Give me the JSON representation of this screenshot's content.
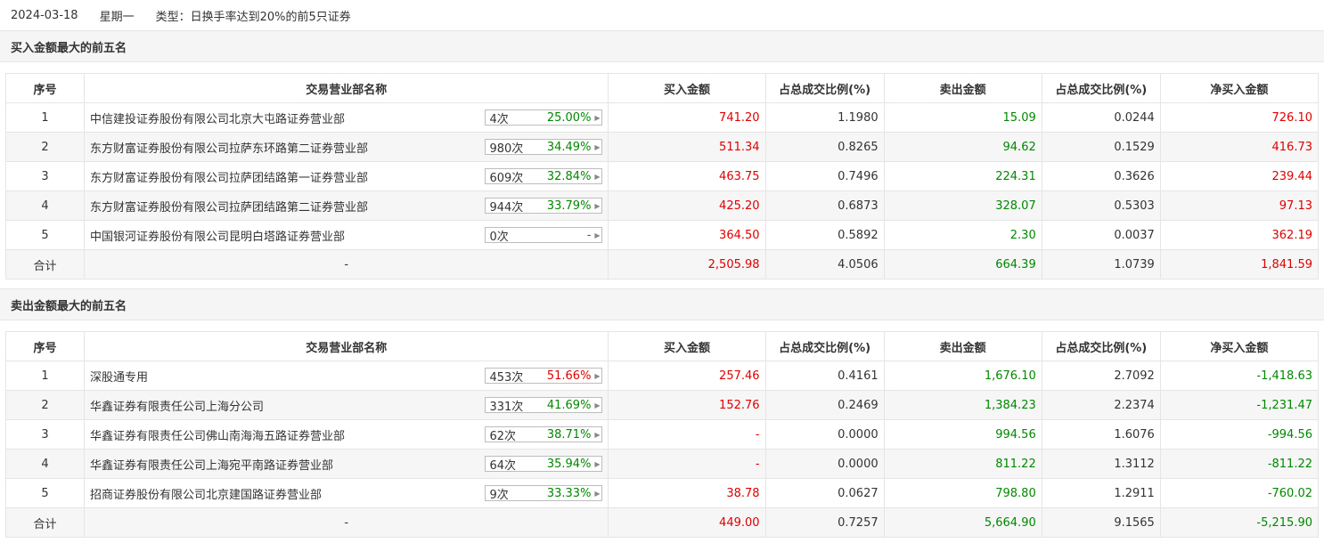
{
  "topbar": {
    "date": "2024-03-18",
    "weekday": "星期一",
    "type": "类型：日换手率达到20%的前5只证券"
  },
  "headers": [
    "序号",
    "交易营业部名称",
    "买入金额",
    "占总成交比例(%)",
    "卖出金额",
    "占总成交比例(%)",
    "净买入金额"
  ],
  "sections": [
    {
      "title": "买入金额最大的前五名",
      "rows": [
        {
          "idx": "1",
          "dept": "中信建投证券股份有限公司北京大屯路证券营业部",
          "count": "4次",
          "pct": "25.00%",
          "pct_color": "green",
          "buy": "741.20",
          "buy_color": "red",
          "buy_ratio": "1.1980",
          "sell": "15.09",
          "sell_ratio": "0.0244",
          "net": "726.10",
          "net_color": "red"
        },
        {
          "idx": "2",
          "dept": "东方财富证券股份有限公司拉萨东环路第二证券营业部",
          "count": "980次",
          "pct": "34.49%",
          "pct_color": "green",
          "buy": "511.34",
          "buy_color": "red",
          "buy_ratio": "0.8265",
          "sell": "94.62",
          "sell_ratio": "0.1529",
          "net": "416.73",
          "net_color": "red"
        },
        {
          "idx": "3",
          "dept": "东方财富证券股份有限公司拉萨团结路第一证券营业部",
          "count": "609次",
          "pct": "32.84%",
          "pct_color": "green",
          "buy": "463.75",
          "buy_color": "red",
          "buy_ratio": "0.7496",
          "sell": "224.31",
          "sell_ratio": "0.3626",
          "net": "239.44",
          "net_color": "red"
        },
        {
          "idx": "4",
          "dept": "东方财富证券股份有限公司拉萨团结路第二证券营业部",
          "count": "944次",
          "pct": "33.79%",
          "pct_color": "green",
          "buy": "425.20",
          "buy_color": "red",
          "buy_ratio": "0.6873",
          "sell": "328.07",
          "sell_ratio": "0.5303",
          "net": "97.13",
          "net_color": "red"
        },
        {
          "idx": "5",
          "dept": "中国银河证券股份有限公司昆明白塔路证券营业部",
          "count": "0次",
          "pct": "-",
          "pct_color": "gray",
          "buy": "364.50",
          "buy_color": "red",
          "buy_ratio": "0.5892",
          "sell": "2.30",
          "sell_ratio": "0.0037",
          "net": "362.19",
          "net_color": "red"
        }
      ],
      "total": {
        "label": "合计",
        "dept": "-",
        "buy": "2,505.98",
        "buy_ratio": "4.0506",
        "sell": "664.39",
        "sell_ratio": "1.0739",
        "net": "1,841.59",
        "net_color": "red"
      }
    },
    {
      "title": "卖出金额最大的前五名",
      "rows": [
        {
          "idx": "1",
          "dept": "深股通专用",
          "count": "453次",
          "pct": "51.66%",
          "pct_color": "red",
          "buy": "257.46",
          "buy_color": "red",
          "buy_ratio": "0.4161",
          "sell": "1,676.10",
          "sell_ratio": "2.7092",
          "net": "-1,418.63",
          "net_color": "green"
        },
        {
          "idx": "2",
          "dept": "华鑫证券有限责任公司上海分公司",
          "count": "331次",
          "pct": "41.69%",
          "pct_color": "green",
          "buy": "152.76",
          "buy_color": "red",
          "buy_ratio": "0.2469",
          "sell": "1,384.23",
          "sell_ratio": "2.2374",
          "net": "-1,231.47",
          "net_color": "green"
        },
        {
          "idx": "3",
          "dept": "华鑫证券有限责任公司佛山南海海五路证券营业部",
          "count": "62次",
          "pct": "38.71%",
          "pct_color": "green",
          "buy": "-",
          "buy_color": "red",
          "buy_ratio": "0.0000",
          "sell": "994.56",
          "sell_ratio": "1.6076",
          "net": "-994.56",
          "net_color": "green"
        },
        {
          "idx": "4",
          "dept": "华鑫证券有限责任公司上海宛平南路证券营业部",
          "count": "64次",
          "pct": "35.94%",
          "pct_color": "green",
          "buy": "-",
          "buy_color": "red",
          "buy_ratio": "0.0000",
          "sell": "811.22",
          "sell_ratio": "1.3112",
          "net": "-811.22",
          "net_color": "green"
        },
        {
          "idx": "5",
          "dept": "招商证券股份有限公司北京建国路证券营业部",
          "count": "9次",
          "pct": "33.33%",
          "pct_color": "green",
          "buy": "38.78",
          "buy_color": "red",
          "buy_ratio": "0.0627",
          "sell": "798.80",
          "sell_ratio": "1.2911",
          "net": "-760.02",
          "net_color": "green"
        }
      ],
      "total": {
        "label": "合计",
        "dept": "-",
        "buy": "449.00",
        "buy_ratio": "0.7257",
        "sell": "5,664.90",
        "sell_ratio": "9.1565",
        "net": "-5,215.90",
        "net_color": "green"
      }
    }
  ],
  "colors": {
    "red": "#e00000",
    "green": "#008800",
    "gray": "#555555"
  }
}
